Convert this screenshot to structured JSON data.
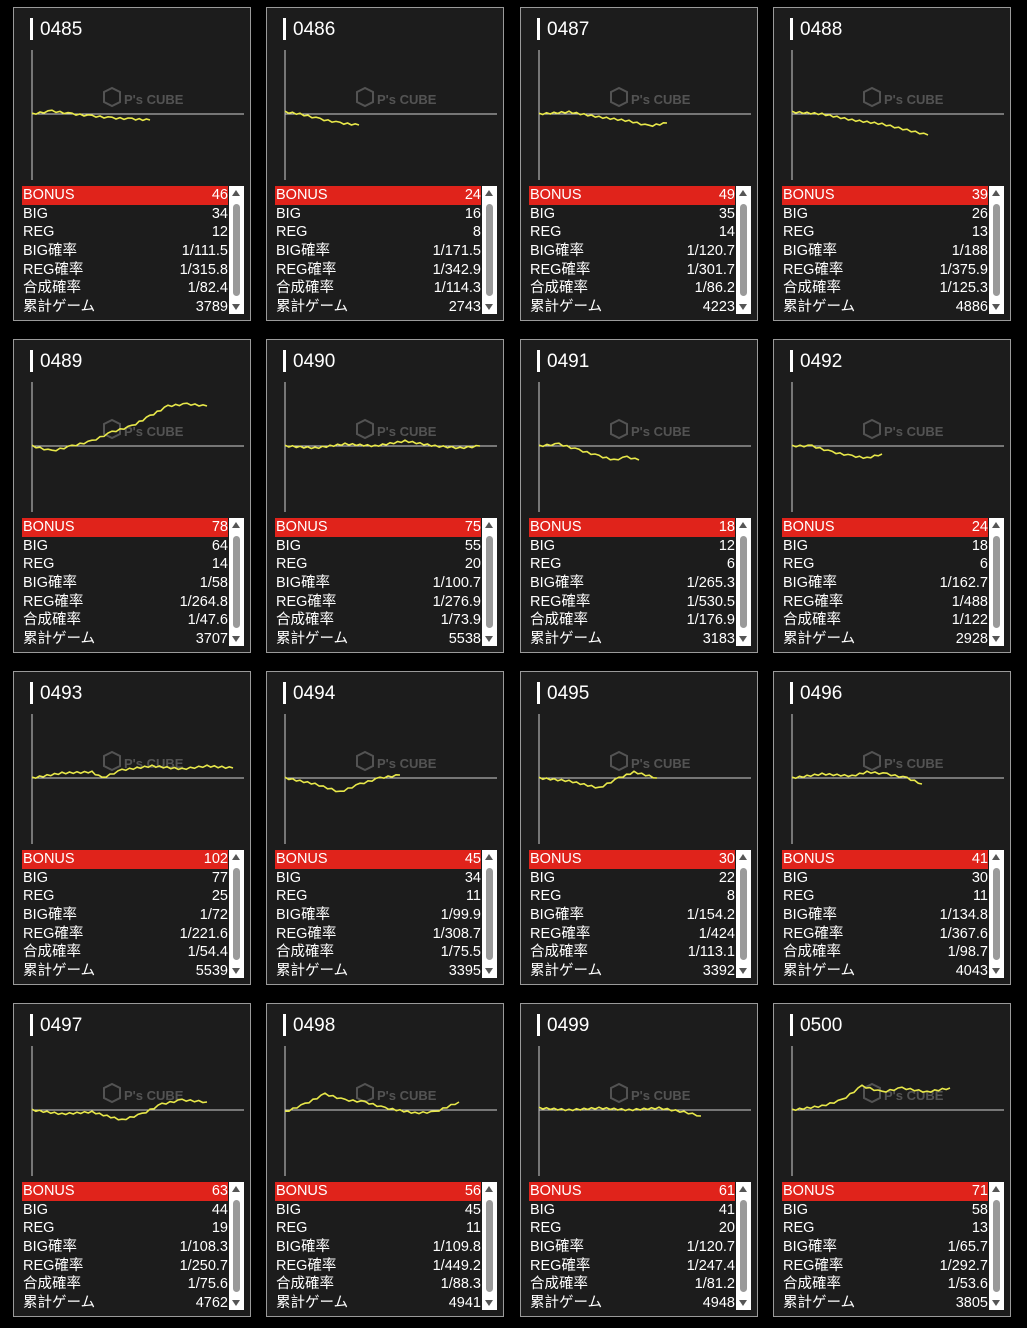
{
  "colors": {
    "bonus": "#e0231b",
    "graph_line": "#e8e84a",
    "card_bg": "#1c1c1c"
  },
  "labels": {
    "bonus": "BONUS",
    "big": "BIG",
    "reg": "REG",
    "big_rate": "BIG確率",
    "reg_rate": "REG確率",
    "combined_rate": "合成確率",
    "total_games": "累計ゲーム"
  },
  "watermark": "P's CUBE",
  "machines": [
    {
      "id": "0485",
      "bonus": "46",
      "big": "34",
      "reg": "12",
      "big_rate": "1/111.5",
      "reg_rate": "1/315.8",
      "combined_rate": "1/82.4",
      "total_games": "3789"
    },
    {
      "id": "0486",
      "bonus": "24",
      "big": "16",
      "reg": "8",
      "big_rate": "1/171.5",
      "reg_rate": "1/342.9",
      "combined_rate": "1/114.3",
      "total_games": "2743"
    },
    {
      "id": "0487",
      "bonus": "49",
      "big": "35",
      "reg": "14",
      "big_rate": "1/120.7",
      "reg_rate": "1/301.7",
      "combined_rate": "1/86.2",
      "total_games": "4223"
    },
    {
      "id": "0488",
      "bonus": "39",
      "big": "26",
      "reg": "13",
      "big_rate": "1/188",
      "reg_rate": "1/375.9",
      "combined_rate": "1/125.3",
      "total_games": "4886"
    },
    {
      "id": "0489",
      "bonus": "78",
      "big": "64",
      "reg": "14",
      "big_rate": "1/58",
      "reg_rate": "1/264.8",
      "combined_rate": "1/47.6",
      "total_games": "3707"
    },
    {
      "id": "0490",
      "bonus": "75",
      "big": "55",
      "reg": "20",
      "big_rate": "1/100.7",
      "reg_rate": "1/276.9",
      "combined_rate": "1/73.9",
      "total_games": "5538"
    },
    {
      "id": "0491",
      "bonus": "18",
      "big": "12",
      "reg": "6",
      "big_rate": "1/265.3",
      "reg_rate": "1/530.5",
      "combined_rate": "1/176.9",
      "total_games": "3183"
    },
    {
      "id": "0492",
      "bonus": "24",
      "big": "18",
      "reg": "6",
      "big_rate": "1/162.7",
      "reg_rate": "1/488",
      "combined_rate": "1/122",
      "total_games": "2928"
    },
    {
      "id": "0493",
      "bonus": "102",
      "big": "77",
      "reg": "25",
      "big_rate": "1/72",
      "reg_rate": "1/221.6",
      "combined_rate": "1/54.4",
      "total_games": "5539"
    },
    {
      "id": "0494",
      "bonus": "45",
      "big": "34",
      "reg": "11",
      "big_rate": "1/99.9",
      "reg_rate": "1/308.7",
      "combined_rate": "1/75.5",
      "total_games": "3395"
    },
    {
      "id": "0495",
      "bonus": "30",
      "big": "22",
      "reg": "8",
      "big_rate": "1/154.2",
      "reg_rate": "1/424",
      "combined_rate": "1/113.1",
      "total_games": "3392"
    },
    {
      "id": "0496",
      "bonus": "41",
      "big": "30",
      "reg": "11",
      "big_rate": "1/134.8",
      "reg_rate": "1/367.6",
      "combined_rate": "1/98.7",
      "total_games": "4043"
    },
    {
      "id": "0497",
      "bonus": "63",
      "big": "44",
      "reg": "19",
      "big_rate": "1/108.3",
      "reg_rate": "1/250.7",
      "combined_rate": "1/75.6",
      "total_games": "4762"
    },
    {
      "id": "0498",
      "bonus": "56",
      "big": "45",
      "reg": "11",
      "big_rate": "1/109.8",
      "reg_rate": "1/449.2",
      "combined_rate": "1/88.3",
      "total_games": "4941"
    },
    {
      "id": "0499",
      "bonus": "61",
      "big": "41",
      "reg": "20",
      "big_rate": "1/120.7",
      "reg_rate": "1/247.4",
      "combined_rate": "1/81.2",
      "total_games": "4948"
    },
    {
      "id": "0500",
      "bonus": "71",
      "big": "58",
      "reg": "13",
      "big_rate": "1/65.7",
      "reg_rate": "1/292.7",
      "combined_rate": "1/53.6",
      "total_games": "3805"
    }
  ]
}
